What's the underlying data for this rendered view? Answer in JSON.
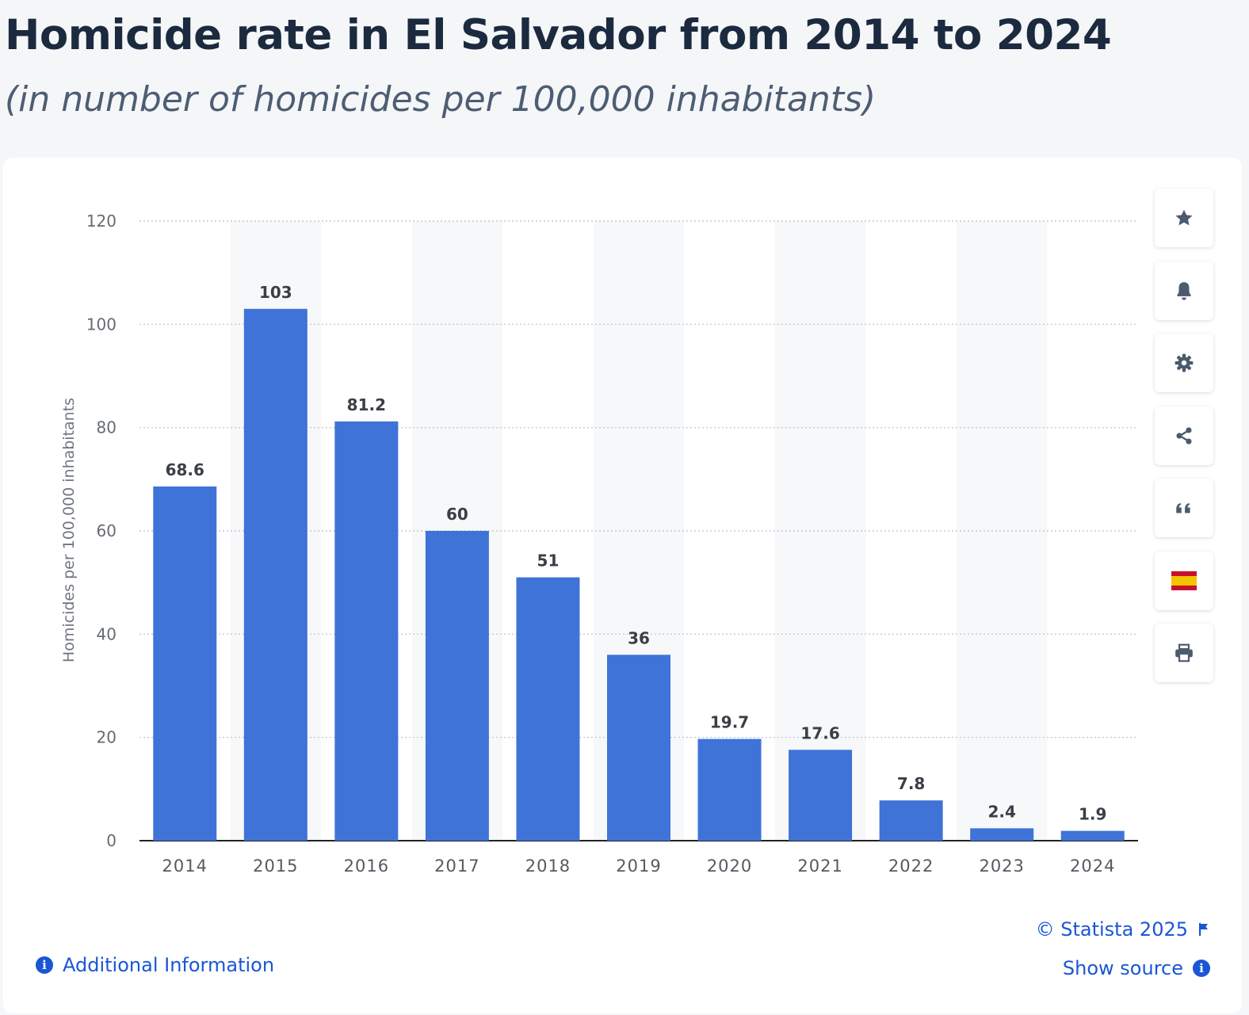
{
  "header": {
    "title": "Homicide rate in El Salvador from 2014 to 2024",
    "subtitle": "(in number of homicides per 100,000 inhabitants)"
  },
  "chart_data": {
    "type": "bar",
    "categories": [
      "2014",
      "2015",
      "2016",
      "2017",
      "2018",
      "2019",
      "2020",
      "2021",
      "2022",
      "2023",
      "2024"
    ],
    "values": [
      68.6,
      103,
      81.2,
      60,
      51,
      36,
      19.7,
      17.6,
      7.8,
      2.4,
      1.9
    ],
    "value_labels": [
      "68.6",
      "103",
      "81.2",
      "60",
      "51",
      "36",
      "19.7",
      "17.6",
      "7.8",
      "2.4",
      "1.9"
    ],
    "ylabel": "Homicides per 100,000 inhabitants",
    "xlabel": "",
    "ylim": [
      0,
      120
    ],
    "yticks": [
      0,
      20,
      40,
      60,
      80,
      100,
      120
    ],
    "grid": true,
    "colors": {
      "bar": "#3f73d8",
      "alt_band": "#f7f8fa",
      "label": "#3a3f47",
      "tick": "#666b73"
    }
  },
  "toolbar": {
    "items": [
      {
        "name": "favorite",
        "icon": "star-icon"
      },
      {
        "name": "notification",
        "icon": "bell-icon"
      },
      {
        "name": "settings",
        "icon": "gear-icon"
      },
      {
        "name": "share",
        "icon": "share-icon"
      },
      {
        "name": "cite",
        "icon": "quote-icon"
      },
      {
        "name": "language",
        "icon": "spain-flag-icon"
      },
      {
        "name": "print",
        "icon": "printer-icon"
      }
    ],
    "icon_color": "#4c5a6d"
  },
  "footer": {
    "copyright": "© Statista 2025",
    "show_source": "Show source",
    "additional_info": "Additional Information",
    "link_color": "#1a56d6"
  }
}
